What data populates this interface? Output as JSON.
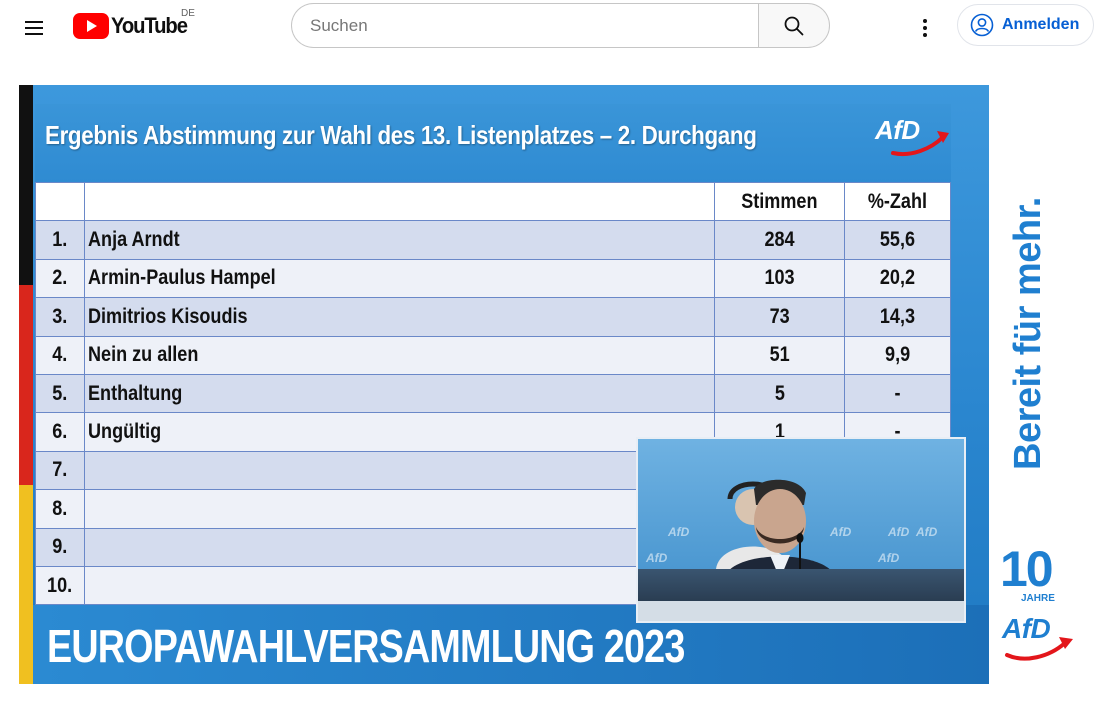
{
  "header": {
    "logo_text": "YouTube",
    "region": "DE",
    "search_placeholder": "Suchen",
    "signin_label": "Anmelden"
  },
  "video": {
    "slide_title": "Ergebnis Abstimmung zur Wahl des 13. Listenplatzes – 2. Durchgang",
    "party_logo": "AfD",
    "columns": [
      "",
      "",
      "Stimmen",
      "%-Zahl"
    ],
    "rows": [
      {
        "rank": "1.",
        "name": "Anja Arndt",
        "votes": "284",
        "pct": "55,6"
      },
      {
        "rank": "2.",
        "name": "Armin-Paulus Hampel",
        "votes": "103",
        "pct": "20,2"
      },
      {
        "rank": "3.",
        "name": "Dimitrios Kisoudis",
        "votes": "73",
        "pct": "14,3"
      },
      {
        "rank": "4.",
        "name": "Nein zu allen",
        "votes": "51",
        "pct": "9,9"
      },
      {
        "rank": "5.",
        "name": "Enthaltung",
        "votes": "5",
        "pct": "-"
      },
      {
        "rank": "6.",
        "name": "Ungültig",
        "votes": "1",
        "pct": "-"
      },
      {
        "rank": "7.",
        "name": "",
        "votes": "",
        "pct": ""
      },
      {
        "rank": "8.",
        "name": "",
        "votes": "",
        "pct": ""
      },
      {
        "rank": "9.",
        "name": "",
        "votes": "",
        "pct": ""
      },
      {
        "rank": "10.",
        "name": "",
        "votes": "",
        "pct": ""
      }
    ],
    "banner": "EUROPAWAHLVERSAMMLUNG 2023",
    "inset_watermark": "AfD"
  },
  "side_panel": {
    "slogan": "Bereit für mehr.",
    "anniversary_number": "10",
    "anniversary_word": "JAHRE",
    "party": "AfD"
  },
  "colors": {
    "youtube_red": "#ff0000",
    "link_blue": "#065fd4",
    "afd_blue": "#1f7fd0",
    "winner_green": "#4cc25a"
  }
}
